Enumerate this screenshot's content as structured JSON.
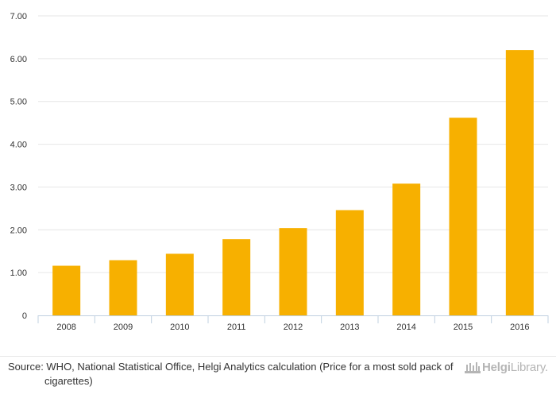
{
  "chart_data": {
    "type": "bar",
    "categories": [
      "2008",
      "2009",
      "2010",
      "2011",
      "2012",
      "2013",
      "2014",
      "2015",
      "2016"
    ],
    "values": [
      1.16,
      1.29,
      1.44,
      1.78,
      2.04,
      2.46,
      3.08,
      4.62,
      6.2
    ],
    "ylim": [
      0,
      7
    ],
    "yticks": [
      "0",
      "1.00",
      "2.00",
      "3.00",
      "4.00",
      "5.00",
      "6.00",
      "7.00"
    ],
    "grid": true,
    "bar_color": "#f7b000"
  },
  "footer": {
    "source_text": "Source: WHO, National Statistical Office, Helgi Analytics calculation (Price for a most sold pack of cigarettes)",
    "brand_bold": "Helgi",
    "brand_rest": "Library."
  },
  "colors": {
    "bar": "#f7b000",
    "grid": "#e6e6e6",
    "axis": "#c0d0e0",
    "brand": "#b5b5b5"
  }
}
